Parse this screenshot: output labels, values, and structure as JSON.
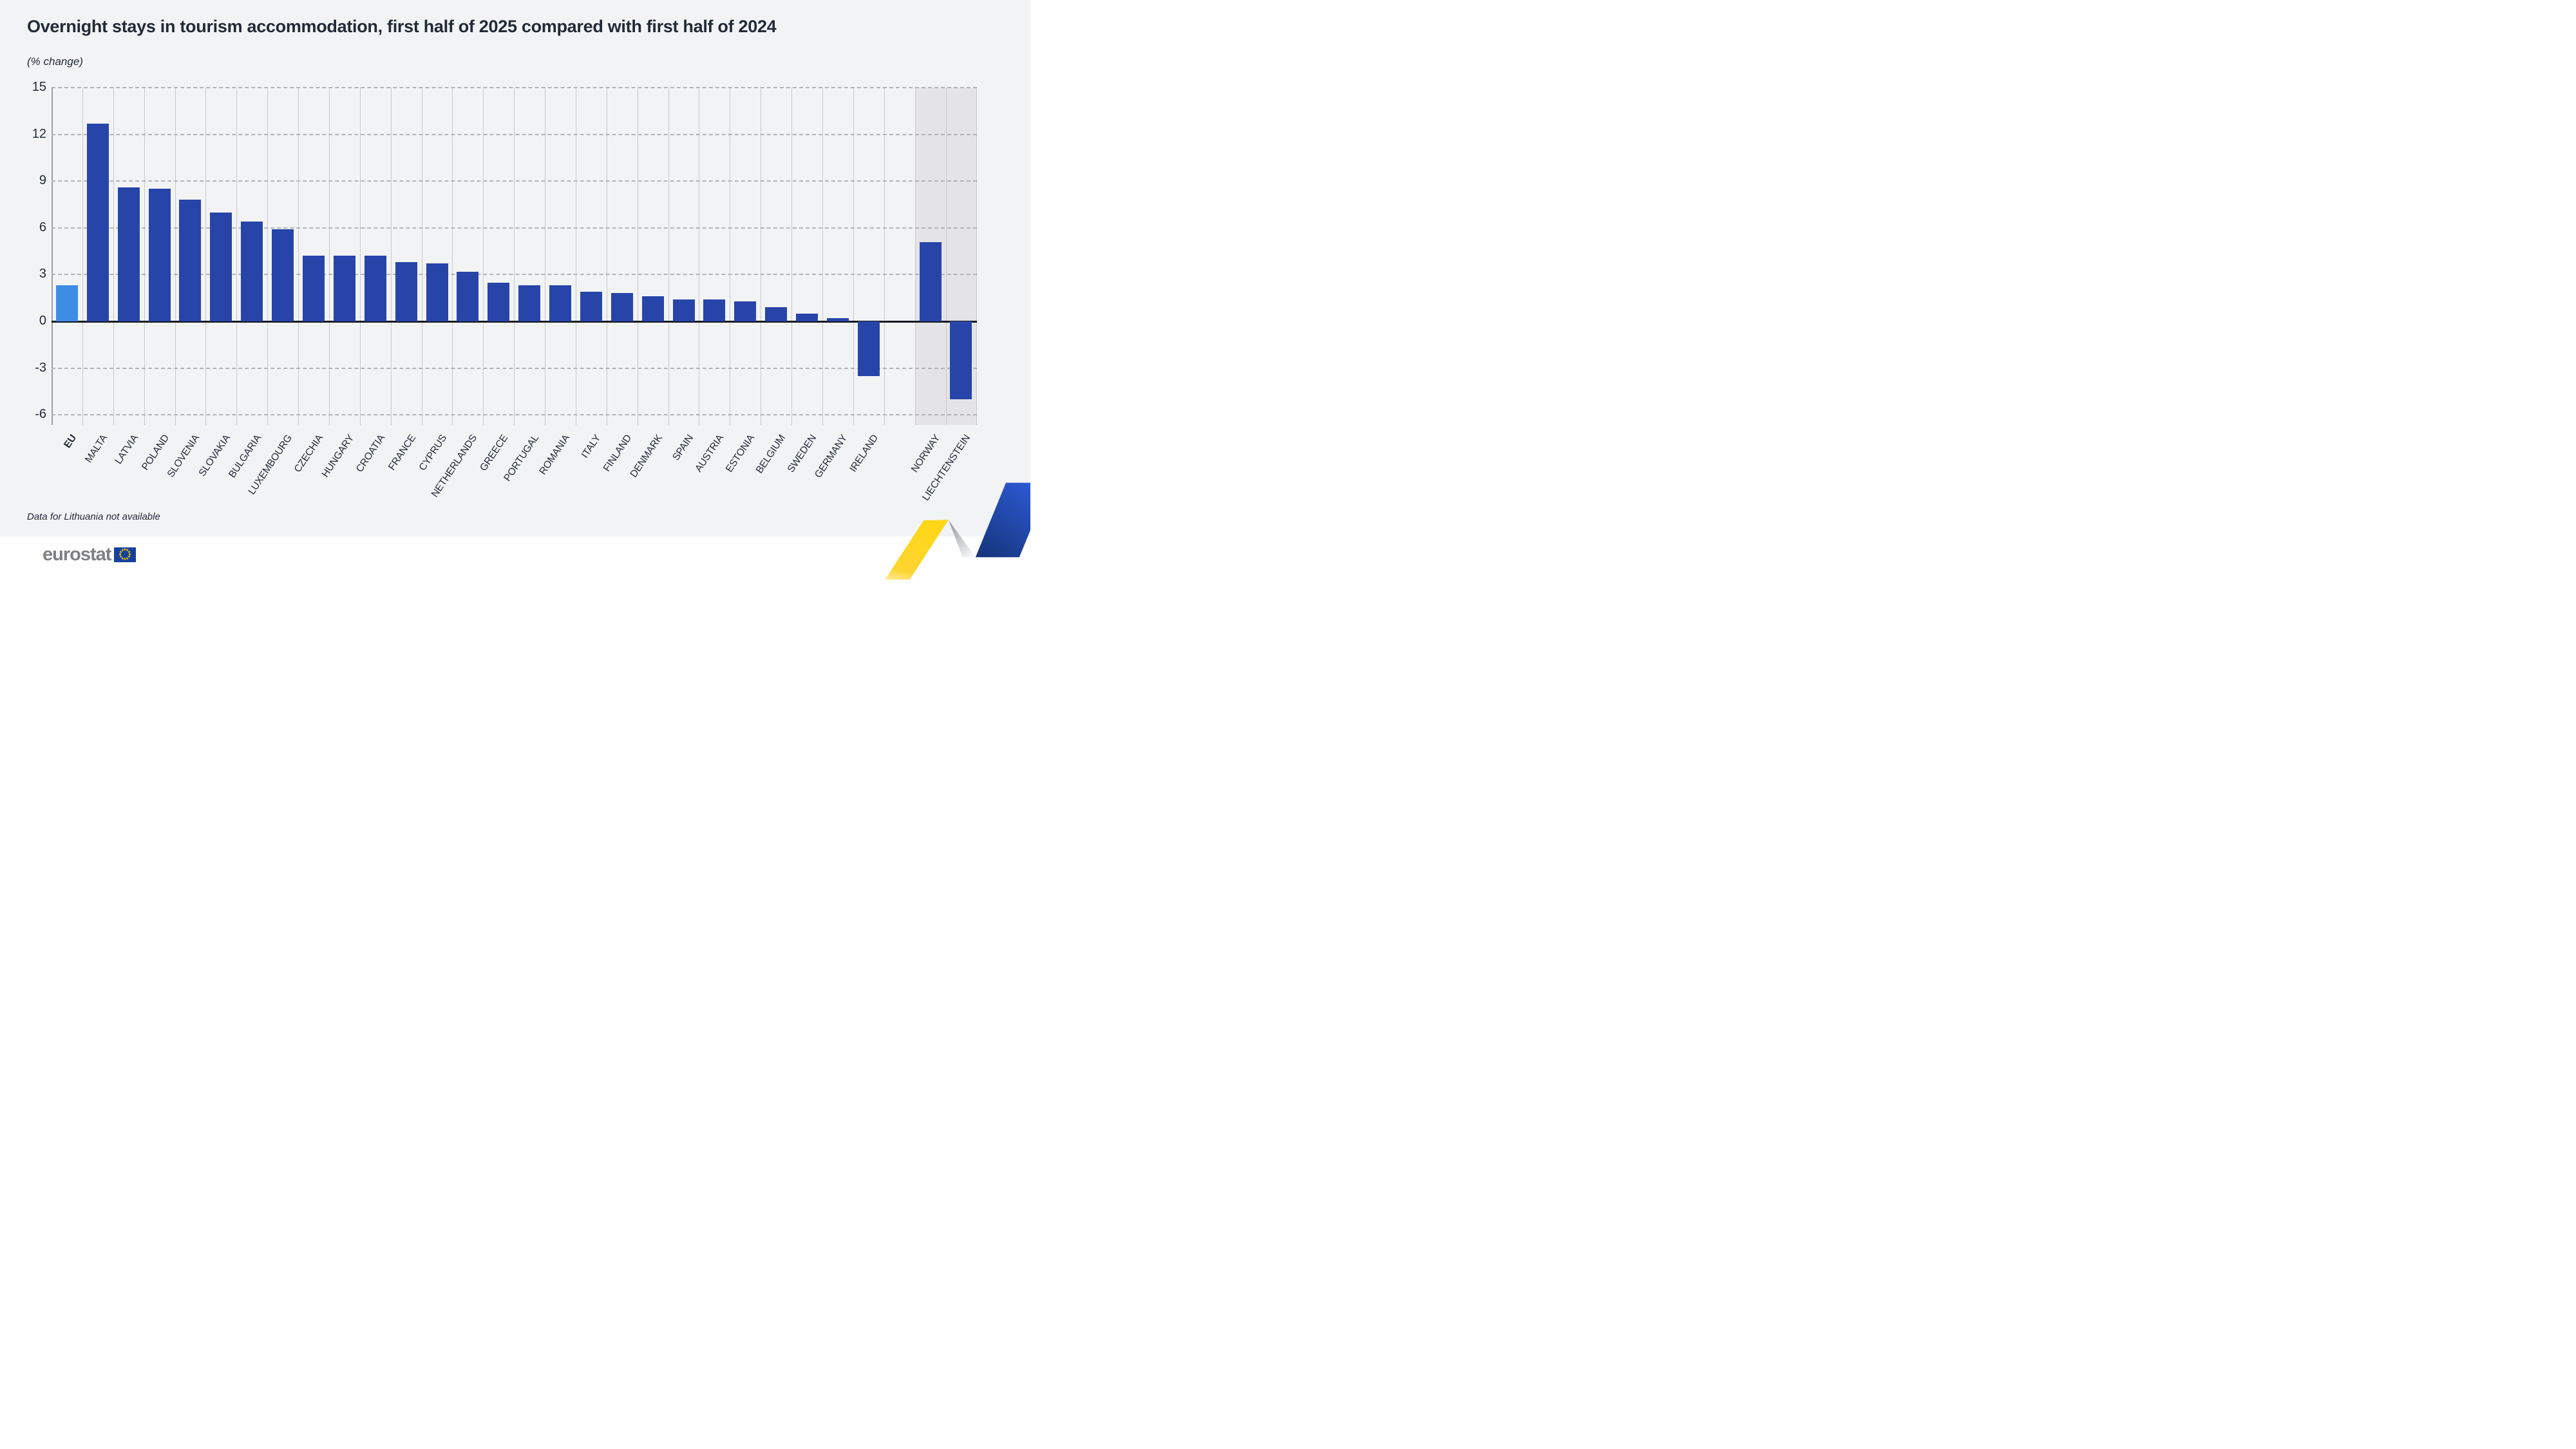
{
  "page": {
    "title": "Overnight stays in tourism accommodation, first half of 2025 compared with first half of 2024",
    "subtitle": "(% change)",
    "footnote": "Data for Lithuania not available",
    "brand": {
      "logo_text": "eurostat"
    }
  },
  "chart_data": {
    "type": "bar",
    "title": "Overnight stays in tourism accommodation, first half of 2025 compared with first half of 2024",
    "subtitle": "(% change)",
    "ylabel": "% change",
    "xlabel": "",
    "ylim": [
      -6,
      15
    ],
    "yticks": [
      15,
      12,
      9,
      6,
      3,
      0,
      -3,
      -6
    ],
    "grid": {
      "horizontal": "dashed",
      "vertical": "solid column separators"
    },
    "legend_position": "none",
    "categories": [
      "EU",
      "MALTA",
      "LATVIA",
      "POLAND",
      "SLOVENIA",
      "SLOVAKIA",
      "BULGARIA",
      "LUXEMBOURG",
      "CZECHIA",
      "HUNGARY",
      "CROATIA",
      "FRANCE",
      "CYPRUS",
      "NETHERLANDS",
      "GREECE",
      "PORTUGAL",
      "ROMANIA",
      "ITALY",
      "FINLAND",
      "DENMARK",
      "SPAIN",
      "AUSTRIA",
      "ESTONIA",
      "BELGIUM",
      "SWEDEN",
      "GERMANY",
      "IRELAND",
      "NORWAY",
      "LIECHTENSTEIN"
    ],
    "values": [
      2.3,
      12.7,
      8.6,
      8.5,
      7.8,
      7.0,
      6.4,
      5.9,
      4.2,
      4.2,
      4.2,
      3.8,
      3.7,
      3.2,
      2.5,
      2.3,
      2.3,
      1.9,
      1.8,
      1.6,
      1.4,
      1.4,
      1.3,
      0.9,
      0.5,
      0.2,
      -3.5,
      5.1,
      -5.0
    ],
    "highlighted_category": "EU",
    "shaded_categories": [
      "NORWAY",
      "LIECHTENSTEIN"
    ],
    "gap_before": "NORWAY",
    "note": "Data for Lithuania not available"
  },
  "colors": {
    "bar": "#2745a9",
    "bar_eu_highlight": "#3e8de5",
    "panel_bg": "#f2f3f4",
    "efta_band": "#e4e4e6",
    "footer_bg": "#ffffff",
    "grid_dashed": "#abaeb3",
    "grid_vertical": "#c7c9cb",
    "zero_line": "#15181e",
    "text": "#232b3a",
    "logo_gray": "#7e8083",
    "flag_blue": "#15409e",
    "star_yellow": "#ffcc00",
    "ribbon_yellow": "#ffd617",
    "ribbon_blue_light": "#2e5bd8",
    "ribbon_blue_dark": "#16367f",
    "ribbon_silver": "#969ba2"
  }
}
